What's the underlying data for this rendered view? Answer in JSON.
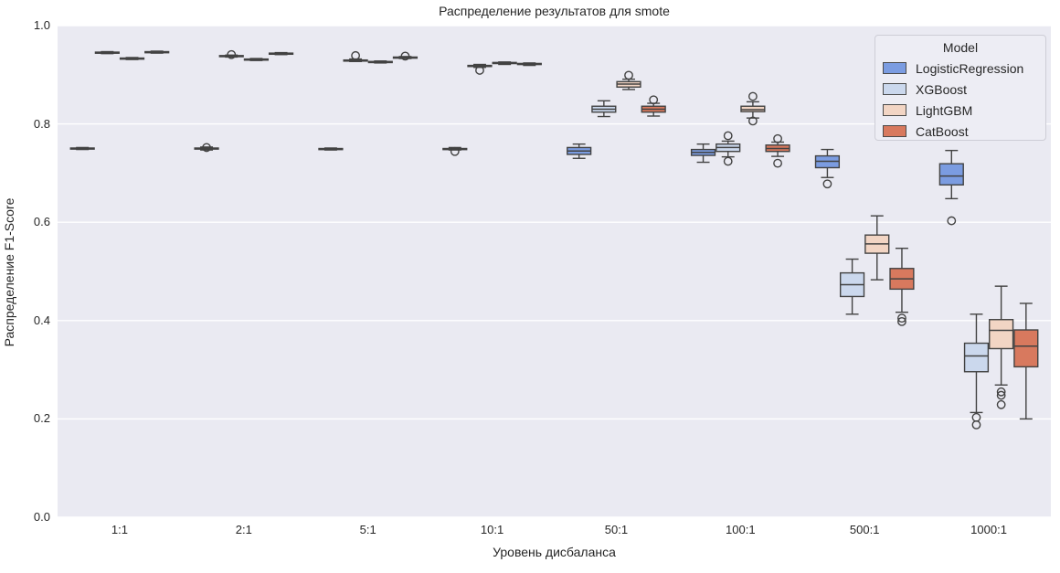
{
  "chart_data": {
    "type": "boxplot",
    "title": "Распределение результатов для smote",
    "xlabel": "Уровень дисбаланса",
    "ylabel": "Распределение F1-Score",
    "ylim": [
      0.0,
      1.0
    ],
    "yticks": [
      0.0,
      0.2,
      0.4,
      0.6,
      0.8,
      1.0
    ],
    "categories": [
      "1:1",
      "2:1",
      "5:1",
      "10:1",
      "50:1",
      "100:1",
      "500:1",
      "1000:1"
    ],
    "grid": "horizontal-white",
    "legend": {
      "title": "Model",
      "position": "upper right"
    },
    "style": {
      "plot_bg": "#eaeaf2",
      "grid_color": "#ffffff",
      "box_edge": "#424242",
      "text_color": "#262626"
    },
    "series": [
      {
        "name": "LogisticRegression",
        "color": "#7b9ce1",
        "boxes": [
          {
            "lo": 0.748,
            "q1": 0.749,
            "med": 0.75,
            "q3": 0.751,
            "hi": 0.752,
            "out": []
          },
          {
            "lo": 0.747,
            "q1": 0.749,
            "med": 0.75,
            "q3": 0.751,
            "hi": 0.753,
            "out": [
              0.752
            ]
          },
          {
            "lo": 0.747,
            "q1": 0.748,
            "med": 0.749,
            "q3": 0.75,
            "hi": 0.751,
            "out": []
          },
          {
            "lo": 0.747,
            "q1": 0.748,
            "med": 0.749,
            "q3": 0.75,
            "hi": 0.752,
            "out": [
              0.744
            ]
          },
          {
            "lo": 0.73,
            "q1": 0.738,
            "med": 0.745,
            "q3": 0.752,
            "hi": 0.759,
            "out": []
          },
          {
            "lo": 0.722,
            "q1": 0.736,
            "med": 0.742,
            "q3": 0.748,
            "hi": 0.759,
            "out": []
          },
          {
            "lo": 0.691,
            "q1": 0.711,
            "med": 0.724,
            "q3": 0.735,
            "hi": 0.748,
            "out": [
              0.678
            ]
          },
          {
            "lo": 0.648,
            "q1": 0.676,
            "med": 0.694,
            "q3": 0.719,
            "hi": 0.746,
            "out": [
              0.603
            ]
          }
        ]
      },
      {
        "name": "XGBoost",
        "color": "#cbd8ed",
        "boxes": [
          {
            "lo": 0.943,
            "q1": 0.944,
            "med": 0.945,
            "q3": 0.946,
            "hi": 0.947,
            "out": []
          },
          {
            "lo": 0.936,
            "q1": 0.937,
            "med": 0.938,
            "q3": 0.939,
            "hi": 0.94,
            "out": [
              0.941
            ]
          },
          {
            "lo": 0.927,
            "q1": 0.928,
            "med": 0.929,
            "q3": 0.93,
            "hi": 0.932,
            "out": [
              0.939
            ]
          },
          {
            "lo": 0.915,
            "q1": 0.917,
            "med": 0.918,
            "q3": 0.919,
            "hi": 0.921,
            "out": [
              0.909
            ]
          },
          {
            "lo": 0.815,
            "q1": 0.824,
            "med": 0.83,
            "q3": 0.836,
            "hi": 0.847,
            "out": []
          },
          {
            "lo": 0.733,
            "q1": 0.744,
            "med": 0.752,
            "q3": 0.759,
            "hi": 0.765,
            "out": [
              0.776,
              0.724
            ]
          },
          {
            "lo": 0.413,
            "q1": 0.449,
            "med": 0.473,
            "q3": 0.497,
            "hi": 0.525,
            "out": []
          },
          {
            "lo": 0.213,
            "q1": 0.296,
            "med": 0.328,
            "q3": 0.354,
            "hi": 0.413,
            "out": [
              0.203,
              0.188
            ]
          }
        ]
      },
      {
        "name": "LightGBM",
        "color": "#f2d5c4",
        "boxes": [
          {
            "lo": 0.931,
            "q1": 0.932,
            "med": 0.933,
            "q3": 0.934,
            "hi": 0.935,
            "out": []
          },
          {
            "lo": 0.929,
            "q1": 0.93,
            "med": 0.931,
            "q3": 0.932,
            "hi": 0.933,
            "out": []
          },
          {
            "lo": 0.924,
            "q1": 0.925,
            "med": 0.926,
            "q3": 0.927,
            "hi": 0.928,
            "out": []
          },
          {
            "lo": 0.921,
            "q1": 0.923,
            "med": 0.924,
            "q3": 0.925,
            "hi": 0.926,
            "out": []
          },
          {
            "lo": 0.87,
            "q1": 0.875,
            "med": 0.881,
            "q3": 0.886,
            "hi": 0.891,
            "out": [
              0.899
            ]
          },
          {
            "lo": 0.812,
            "q1": 0.825,
            "med": 0.829,
            "q3": 0.836,
            "hi": 0.845,
            "out": [
              0.856,
              0.806
            ]
          },
          {
            "lo": 0.483,
            "q1": 0.537,
            "med": 0.556,
            "q3": 0.574,
            "hi": 0.613,
            "out": []
          },
          {
            "lo": 0.269,
            "q1": 0.343,
            "med": 0.38,
            "q3": 0.402,
            "hi": 0.47,
            "out": [
              0.255,
              0.248,
              0.229
            ]
          }
        ]
      },
      {
        "name": "CatBoost",
        "color": "#d8795e",
        "boxes": [
          {
            "lo": 0.944,
            "q1": 0.945,
            "med": 0.946,
            "q3": 0.947,
            "hi": 0.948,
            "out": []
          },
          {
            "lo": 0.941,
            "q1": 0.942,
            "med": 0.943,
            "q3": 0.944,
            "hi": 0.945,
            "out": []
          },
          {
            "lo": 0.933,
            "q1": 0.934,
            "med": 0.935,
            "q3": 0.936,
            "hi": 0.937,
            "out": [
              0.938
            ]
          },
          {
            "lo": 0.919,
            "q1": 0.921,
            "med": 0.922,
            "q3": 0.923,
            "hi": 0.924,
            "out": []
          },
          {
            "lo": 0.816,
            "q1": 0.824,
            "med": 0.83,
            "q3": 0.836,
            "hi": 0.842,
            "out": [
              0.849
            ]
          },
          {
            "lo": 0.734,
            "q1": 0.744,
            "med": 0.75,
            "q3": 0.757,
            "hi": 0.763,
            "out": [
              0.77,
              0.72
            ]
          },
          {
            "lo": 0.417,
            "q1": 0.464,
            "med": 0.485,
            "q3": 0.506,
            "hi": 0.547,
            "out": [
              0.405,
              0.398
            ]
          },
          {
            "lo": 0.2,
            "q1": 0.306,
            "med": 0.348,
            "q3": 0.381,
            "hi": 0.435,
            "out": []
          }
        ]
      }
    ]
  }
}
